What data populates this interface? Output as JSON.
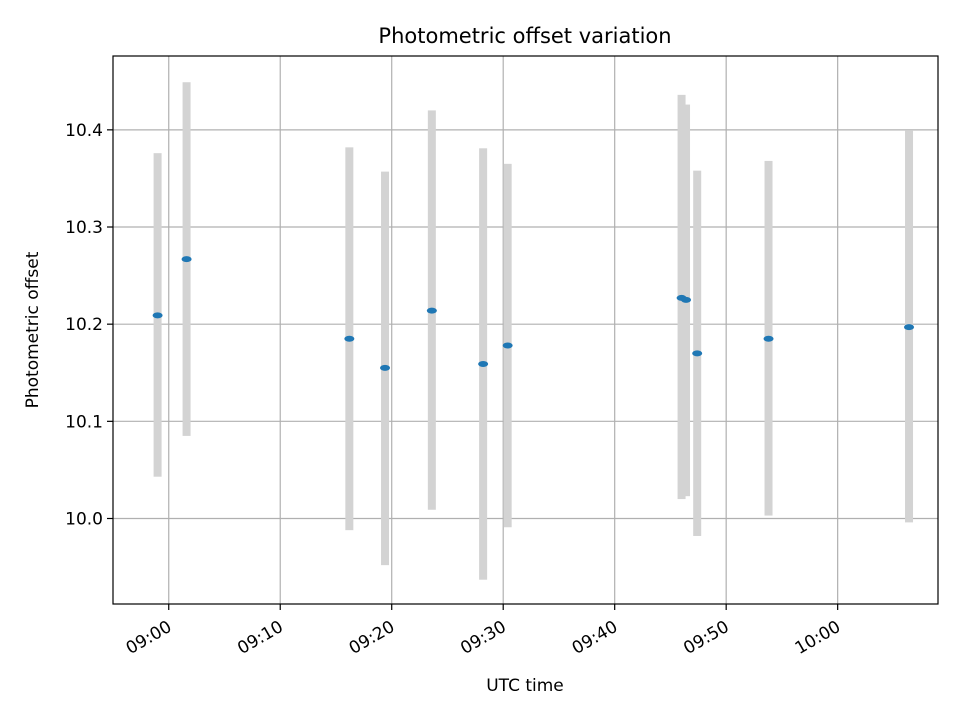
{
  "chart_data": {
    "type": "scatter",
    "title": "Photometric offset variation",
    "xlabel": "UTC time",
    "ylabel": "Photometric offset",
    "grid": true,
    "legend": "none",
    "x_is_time": true,
    "xlim": [
      "08:55",
      "10:09"
    ],
    "ylim": [
      9.912,
      10.476
    ],
    "x_ticks": [
      "09:00",
      "09:10",
      "09:20",
      "09:30",
      "09:40",
      "09:50",
      "10:00"
    ],
    "y_ticks": [
      10.0,
      10.1,
      10.2,
      10.3,
      10.4
    ],
    "series": [
      {
        "marker_color": "#1f77b4",
        "errorbar_color": "#d3d3d3",
        "points": [
          {
            "x": "08:59:00",
            "y": 10.209,
            "yerr_low": 10.043,
            "yerr_high": 10.376
          },
          {
            "x": "09:01:36",
            "y": 10.267,
            "yerr_low": 10.085,
            "yerr_high": 10.449
          },
          {
            "x": "09:16:12",
            "y": 10.185,
            "yerr_low": 9.988,
            "yerr_high": 10.382
          },
          {
            "x": "09:19:24",
            "y": 10.155,
            "yerr_low": 9.952,
            "yerr_high": 10.357
          },
          {
            "x": "09:23:36",
            "y": 10.214,
            "yerr_low": 10.009,
            "yerr_high": 10.42
          },
          {
            "x": "09:28:12",
            "y": 10.159,
            "yerr_low": 9.937,
            "yerr_high": 10.381
          },
          {
            "x": "09:30:24",
            "y": 10.178,
            "yerr_low": 9.991,
            "yerr_high": 10.365
          },
          {
            "x": "09:46:00",
            "y": 10.227,
            "yerr_low": 10.02,
            "yerr_high": 10.436
          },
          {
            "x": "09:46:24",
            "y": 10.225,
            "yerr_low": 10.023,
            "yerr_high": 10.426
          },
          {
            "x": "09:47:24",
            "y": 10.17,
            "yerr_low": 9.982,
            "yerr_high": 10.358
          },
          {
            "x": "09:53:48",
            "y": 10.185,
            "yerr_low": 10.003,
            "yerr_high": 10.368
          },
          {
            "x": "10:06:24",
            "y": 10.197,
            "yerr_low": 9.996,
            "yerr_high": 10.399
          }
        ]
      }
    ]
  }
}
